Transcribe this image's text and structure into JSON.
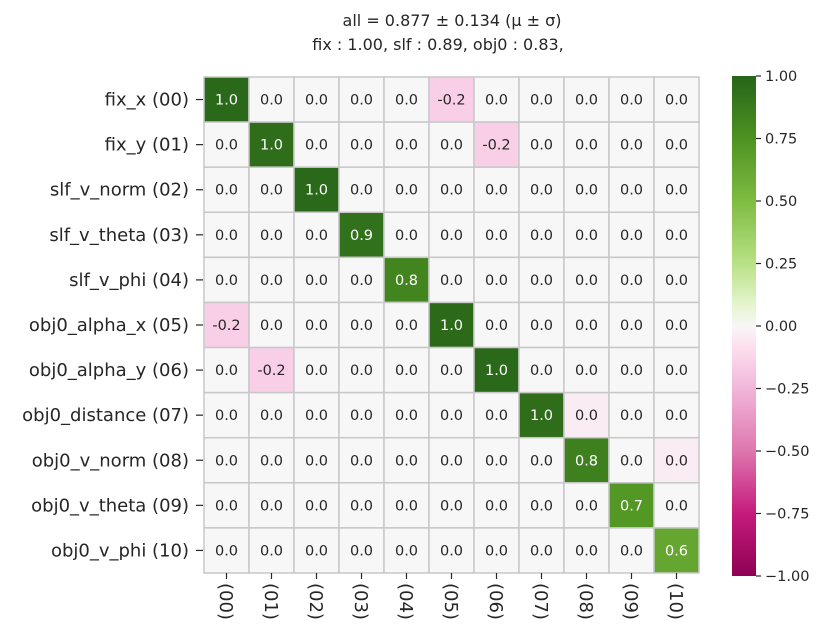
{
  "chart_data": {
    "type": "heatmap",
    "title_line1": "all  =  0.877 ± 0.134  (μ ± σ)",
    "title_line2": "fix :  1.00,     slf :  0.89,     obj0 :  0.83,",
    "row_labels": [
      "fix_x (00)",
      "fix_y (01)",
      "slf_v_norm (02)",
      "slf_v_theta (03)",
      "slf_v_phi (04)",
      "obj0_alpha_x (05)",
      "obj0_alpha_y (06)",
      "obj0_distance (07)",
      "obj0_v_norm (08)",
      "obj0_v_theta (09)",
      "obj0_v_phi (10)"
    ],
    "col_labels": [
      "(00)",
      "(01)",
      "(02)",
      "(03)",
      "(04)",
      "(05)",
      "(06)",
      "(07)",
      "(08)",
      "(09)",
      "(10)"
    ],
    "values": [
      [
        1.0,
        -0.0,
        0.0,
        0.0,
        0.0,
        -0.2,
        0.0,
        0.0,
        -0.0,
        -0.0,
        0.0
      ],
      [
        -0.0,
        1.0,
        -0.0,
        -0.0,
        0.0,
        0.0,
        -0.2,
        -0.0,
        0.0,
        0.0,
        0.0
      ],
      [
        0.0,
        -0.0,
        1.0,
        -0.0,
        -0.0,
        0.0,
        0.0,
        -0.0,
        -0.0,
        0.0,
        0.0
      ],
      [
        -0.0,
        -0.0,
        -0.0,
        0.9,
        0.0,
        0.0,
        0.0,
        -0.0,
        -0.0,
        0.0,
        -0.0
      ],
      [
        -0.0,
        0.0,
        0.0,
        0.0,
        0.8,
        -0.0,
        -0.0,
        -0.0,
        -0.0,
        0.0,
        -0.0
      ],
      [
        -0.2,
        0.0,
        0.0,
        -0.0,
        0.0,
        1.0,
        0.0,
        0.0,
        -0.0,
        -0.0,
        0.0
      ],
      [
        0.0,
        -0.2,
        0.0,
        -0.0,
        -0.0,
        0.0,
        1.0,
        0.0,
        -0.0,
        0.0,
        -0.0
      ],
      [
        0.0,
        -0.0,
        -0.0,
        -0.0,
        -0.0,
        0.0,
        -0.0,
        1.0,
        -0.0,
        0.0,
        0.0
      ],
      [
        0.0,
        0.0,
        -0.0,
        -0.0,
        -0.0,
        -0.0,
        0.0,
        -0.0,
        0.8,
        -0.0,
        -0.0
      ],
      [
        -0.0,
        -0.0,
        0.0,
        -0.0,
        -0.0,
        0.0,
        -0.0,
        -0.0,
        -0.0,
        0.7,
        -0.0
      ],
      [
        -0.0,
        -0.0,
        -0.0,
        -0.0,
        0.0,
        0.0,
        -0.0,
        -0.0,
        -0.0,
        0.0,
        0.6
      ]
    ],
    "tints": [
      [
        0,
        0,
        0,
        0,
        0,
        -0.15,
        0,
        0,
        0,
        0,
        0
      ],
      [
        0,
        0,
        0,
        0,
        0,
        0,
        -0.15,
        0,
        0,
        0,
        0
      ],
      [
        0,
        0,
        0,
        0,
        0,
        0,
        0,
        0,
        0,
        0,
        0
      ],
      [
        0,
        0,
        0,
        0,
        0,
        0,
        0,
        0,
        0,
        0,
        0
      ],
      [
        0,
        0,
        0,
        0,
        0,
        0,
        0,
        0,
        0,
        0,
        0
      ],
      [
        -0.15,
        0,
        0,
        0,
        0,
        0,
        0,
        0,
        0,
        0,
        0
      ],
      [
        0,
        -0.15,
        0,
        0,
        0,
        0,
        0,
        0,
        0,
        0,
        0
      ],
      [
        0,
        0,
        0,
        0,
        0,
        0,
        0,
        0,
        -0.04,
        0,
        0
      ],
      [
        0,
        0,
        0,
        0,
        0,
        0,
        0,
        0,
        0,
        0,
        -0.04
      ],
      [
        0,
        0,
        0,
        0,
        0,
        0,
        0,
        0,
        0,
        0,
        0
      ],
      [
        0,
        0,
        0,
        0,
        0,
        0,
        0,
        0,
        0,
        0,
        0
      ]
    ],
    "diagonal_values": [
      0.98,
      0.95,
      0.98,
      0.93,
      0.82,
      0.97,
      0.98,
      0.95,
      0.85,
      0.72,
      0.63
    ],
    "colormap": "PiYG",
    "vmin": -1.0,
    "vmax": 1.0,
    "colorbar_ticks": [
      1.0,
      0.75,
      0.5,
      0.25,
      0.0,
      -0.25,
      -0.5,
      -0.75,
      -1.0
    ],
    "colorbar_tick_labels": [
      "1.00",
      "0.75",
      "0.50",
      "0.25",
      "0.00",
      "−0.25",
      "−0.50",
      "−0.75",
      "−1.00"
    ],
    "grid_color": "#c8c8c8"
  }
}
